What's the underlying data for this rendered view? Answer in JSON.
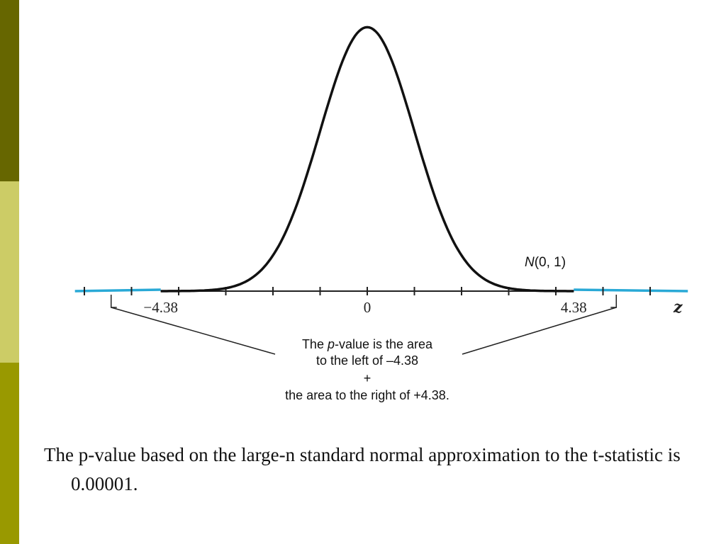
{
  "colors": {
    "bar_top": "#666600",
    "bar_middle": "#cccc66",
    "bar_bottom": "#999900",
    "curve": "#111111",
    "tail": "#29a9d6",
    "axis": "#222222"
  },
  "chart_data": {
    "type": "line",
    "distribution_label": "N(0, 1)",
    "xlabel": "z",
    "xlim": [
      -6.2,
      6.8
    ],
    "ticks": [
      -6,
      -5,
      -4,
      -3,
      -2,
      -1,
      0,
      1,
      2,
      3,
      4,
      5,
      6
    ],
    "tick_labels": [
      {
        "x": -4.38,
        "text": "−4.38"
      },
      {
        "x": 0,
        "text": "0"
      },
      {
        "x": 4.38,
        "text": "4.38"
      }
    ],
    "critical_value": 4.38,
    "series": [
      {
        "x": [
          -4.38,
          -4,
          -3.5,
          -3,
          -2.5,
          -2,
          -1.5,
          -1,
          -0.5,
          0,
          0.5,
          1,
          1.5,
          2,
          2.5,
          3,
          3.5,
          4,
          4.38
        ],
        "values": [
          3e-05,
          0.00013,
          0.00087,
          0.0044,
          0.0175,
          0.054,
          0.1295,
          0.242,
          0.352,
          0.3989,
          0.352,
          0.242,
          0.1295,
          0.054,
          0.0175,
          0.0044,
          0.00087,
          0.00013,
          3e-05
        ]
      }
    ],
    "annotation": {
      "line1_pre": "The ",
      "line1_italic": "p",
      "line1_post": "-value is the area",
      "line2": "to the left of –4.38",
      "line3": "+",
      "line4": "the area to the right of +4.38."
    }
  },
  "caption": "The p-value based on the large-n standard normal approximation to the t-statistic is 0.00001."
}
